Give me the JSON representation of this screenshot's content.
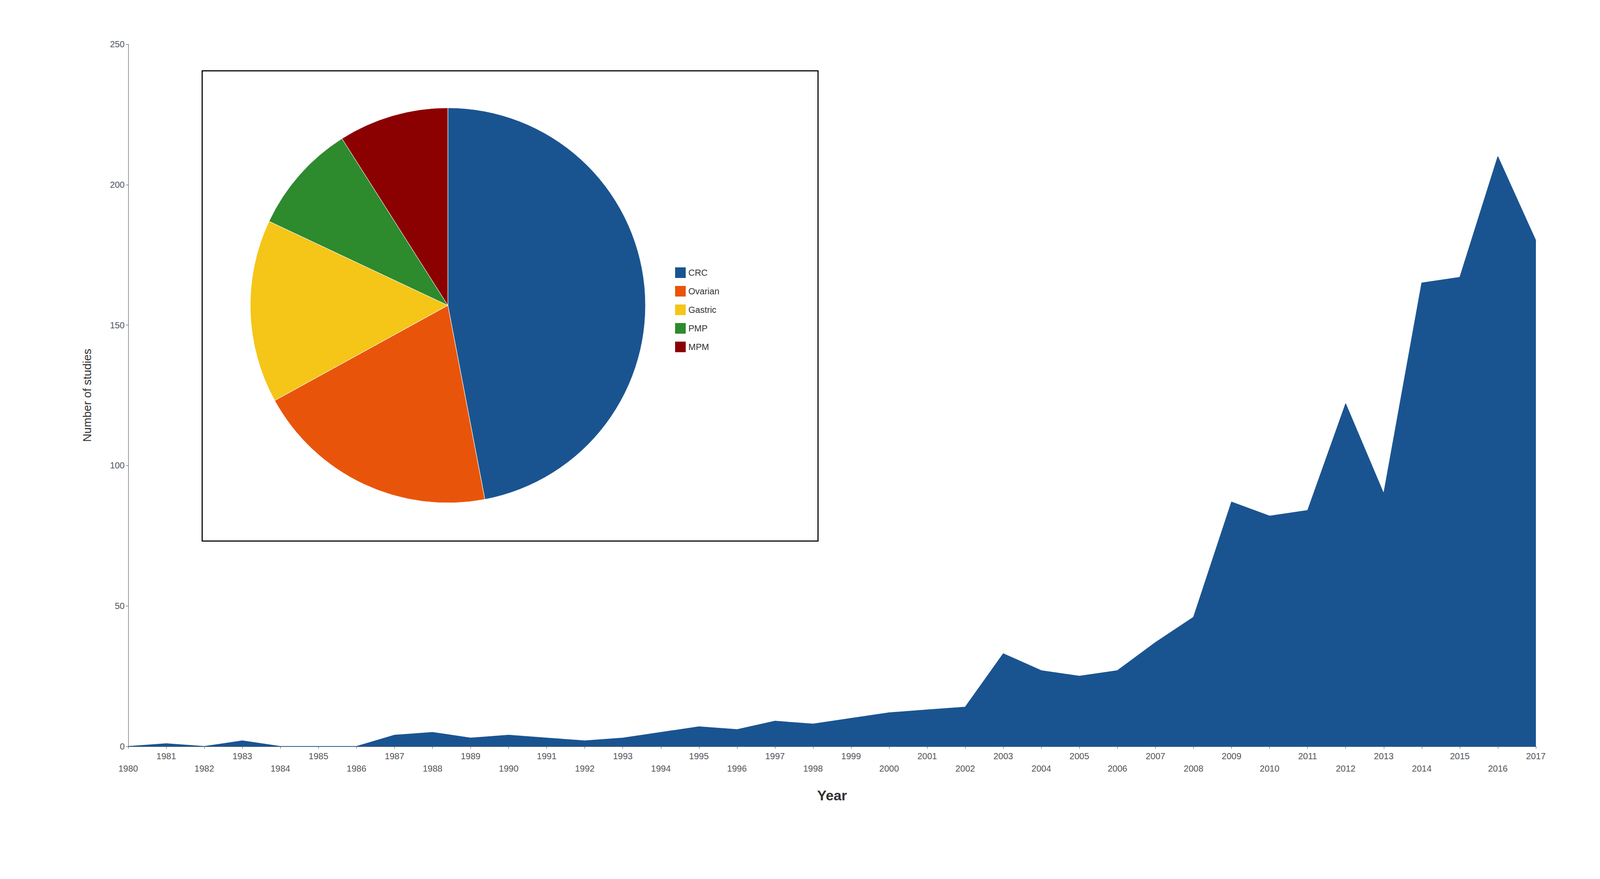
{
  "chart_data": [
    {
      "type": "area",
      "x": [
        1980,
        1981,
        1982,
        1983,
        1984,
        1985,
        1986,
        1987,
        1988,
        1989,
        1990,
        1991,
        1992,
        1993,
        1994,
        1995,
        1996,
        1997,
        1998,
        1999,
        2000,
        2001,
        2002,
        2003,
        2004,
        2005,
        2006,
        2007,
        2008,
        2009,
        2010,
        2011,
        2012,
        2013,
        2014,
        2015,
        2016,
        2017
      ],
      "values": [
        0,
        1,
        0,
        2,
        0,
        0,
        0,
        4,
        5,
        3,
        4,
        3,
        2,
        3,
        5,
        7,
        6,
        9,
        8,
        10,
        12,
        13,
        14,
        33,
        27,
        25,
        27,
        37,
        46,
        87,
        82,
        84,
        122,
        90,
        165,
        167,
        210,
        180
      ],
      "color": "#1a5490",
      "xlabel": "Year",
      "ylabel": "Number of studies",
      "xlim": [
        1980,
        2017
      ],
      "xticks": [
        1980,
        1981,
        1982,
        1983,
        1984,
        1985,
        1986,
        1987,
        1988,
        1989,
        1990,
        1991,
        1992,
        1993,
        1994,
        1995,
        1996,
        1997,
        1998,
        1999,
        2000,
        2001,
        2002,
        2003,
        2004,
        2005,
        2006,
        2007,
        2008,
        2009,
        2010,
        2011,
        2012,
        2013,
        2014,
        2015,
        2016,
        2017
      ],
      "ylim": [
        0,
        250
      ],
      "yticks": [
        0,
        50,
        100,
        150,
        200,
        250
      ],
      "grid": false
    },
    {
      "type": "pie",
      "categories": [
        "CRC",
        "Ovarian",
        "Gastric",
        "PMP",
        "MPM"
      ],
      "values": [
        47,
        20,
        15,
        9,
        9
      ],
      "colors": [
        "#1a5490",
        "#e8550a",
        "#f5c518",
        "#2d8a2d",
        "#8b0000"
      ],
      "legend": "right"
    }
  ]
}
